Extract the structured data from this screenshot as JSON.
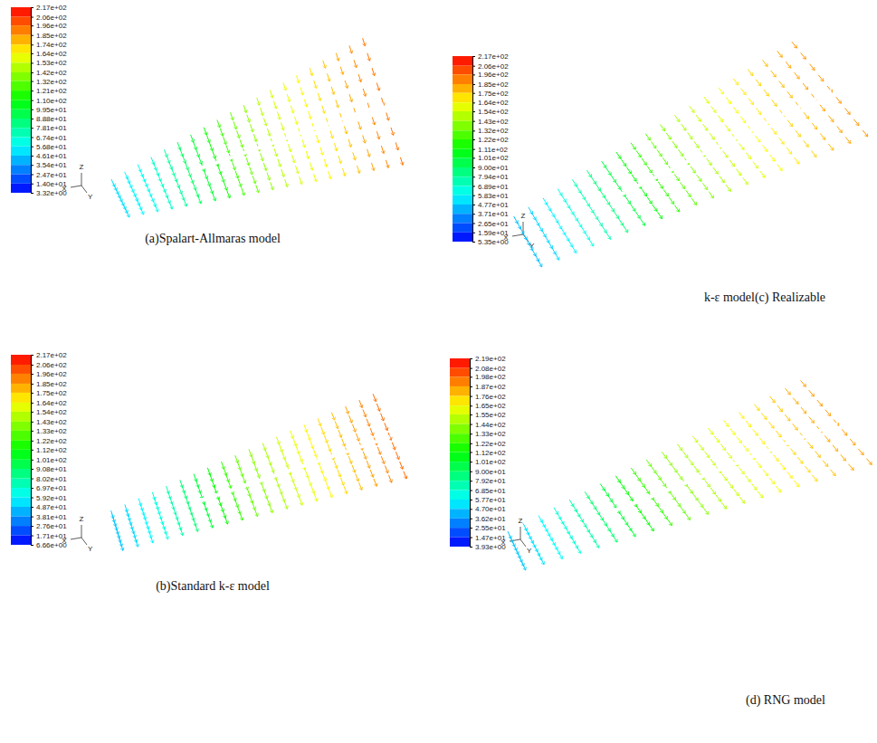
{
  "chart_data": [
    {
      "type": "vector_field",
      "title": "(a)Spalart-Allmaras model",
      "colorbar_range": [
        3.32,
        217
      ],
      "colorbar_ticks": [
        {
          "value": 217,
          "label": "2.17e+02"
        },
        {
          "value": 206,
          "label": "2.06e+02"
        },
        {
          "value": 196,
          "label": "1.96e+02"
        },
        {
          "value": 185,
          "label": "1.85e+02"
        },
        {
          "value": 174,
          "label": "1.74e+02"
        },
        {
          "value": 164,
          "label": "1.64e+02"
        },
        {
          "value": 153,
          "label": "1.53e+02"
        },
        {
          "value": 142,
          "label": "1.42e+02"
        },
        {
          "value": 132,
          "label": "1.32e+02"
        },
        {
          "value": 121,
          "label": "1.21e+02"
        },
        {
          "value": 110,
          "label": "1.10e+02"
        },
        {
          "value": 99.5,
          "label": "9.95e+01"
        },
        {
          "value": 88.8,
          "label": "8.88e+01"
        },
        {
          "value": 78.1,
          "label": "7.81e+01"
        },
        {
          "value": 67.4,
          "label": "6.74e+01"
        },
        {
          "value": 56.8,
          "label": "5.68e+01"
        },
        {
          "value": 46.1,
          "label": "4.61e+01"
        },
        {
          "value": 35.4,
          "label": "3.54e+01"
        },
        {
          "value": 24.7,
          "label": "2.47e+01"
        },
        {
          "value": 14.0,
          "label": "1.40e+01"
        },
        {
          "value": 3.32,
          "label": "3.32e+00"
        }
      ],
      "values": [
        50,
        55,
        60,
        68,
        78,
        90,
        100,
        112,
        122,
        132,
        140,
        148,
        155,
        160,
        165,
        170,
        176,
        182,
        188,
        192
      ],
      "triad": [
        "X",
        "Y",
        "Z"
      ]
    },
    {
      "type": "vector_field",
      "title": "(b)Standard k-ε model",
      "colorbar_range": [
        6.66,
        217
      ],
      "colorbar_ticks": [
        {
          "value": 217,
          "label": "2.17e+02"
        },
        {
          "value": 206,
          "label": "2.06e+02"
        },
        {
          "value": 196,
          "label": "1.96e+02"
        },
        {
          "value": 185,
          "label": "1.85e+02"
        },
        {
          "value": 175,
          "label": "1.75e+02"
        },
        {
          "value": 164,
          "label": "1.64e+02"
        },
        {
          "value": 154,
          "label": "1.54e+02"
        },
        {
          "value": 143,
          "label": "1.43e+02"
        },
        {
          "value": 133,
          "label": "1.33e+02"
        },
        {
          "value": 122,
          "label": "1.22e+02"
        },
        {
          "value": 112,
          "label": "1.12e+02"
        },
        {
          "value": 101,
          "label": "1.01e+02"
        },
        {
          "value": 90.8,
          "label": "9.08e+01"
        },
        {
          "value": 80.2,
          "label": "8.02e+01"
        },
        {
          "value": 69.7,
          "label": "6.97e+01"
        },
        {
          "value": 59.2,
          "label": "5.92e+01"
        },
        {
          "value": 48.7,
          "label": "4.87e+01"
        },
        {
          "value": 38.1,
          "label": "3.81e+01"
        },
        {
          "value": 27.6,
          "label": "2.76e+01"
        },
        {
          "value": 17.1,
          "label": "1.71e+01"
        },
        {
          "value": 6.66,
          "label": "6.66e+00"
        }
      ],
      "values": [
        48,
        52,
        58,
        66,
        76,
        88,
        100,
        112,
        122,
        132,
        140,
        147,
        154,
        160,
        166,
        172,
        178,
        184,
        190,
        195
      ],
      "triad": [
        "X",
        "Y",
        "Z"
      ]
    },
    {
      "type": "vector_field",
      "title": "k-ε model(c) Realizable",
      "colorbar_range": [
        5.35,
        217
      ],
      "colorbar_ticks": [
        {
          "value": 217,
          "label": "2.17e+02"
        },
        {
          "value": 206,
          "label": "2.06e+02"
        },
        {
          "value": 196,
          "label": "1.96e+02"
        },
        {
          "value": 185,
          "label": "1.85e+02"
        },
        {
          "value": 175,
          "label": "1.75e+02"
        },
        {
          "value": 164,
          "label": "1.64e+02"
        },
        {
          "value": 154,
          "label": "1.54e+02"
        },
        {
          "value": 143,
          "label": "1.43e+02"
        },
        {
          "value": 132,
          "label": "1.32e+02"
        },
        {
          "value": 122,
          "label": "1.22e+02"
        },
        {
          "value": 111,
          "label": "1.11e+02"
        },
        {
          "value": 101,
          "label": "1.01e+02"
        },
        {
          "value": 90,
          "label": "9.00e+01"
        },
        {
          "value": 79.4,
          "label": "7.94e+01"
        },
        {
          "value": 68.9,
          "label": "6.89e+01"
        },
        {
          "value": 58.3,
          "label": "5.83e+01"
        },
        {
          "value": 47.7,
          "label": "4.77e+01"
        },
        {
          "value": 37.1,
          "label": "3.71e+01"
        },
        {
          "value": 26.5,
          "label": "2.65e+01"
        },
        {
          "value": 15.9,
          "label": "1.59e+01"
        },
        {
          "value": 5.35,
          "label": "5.35e+00"
        }
      ],
      "values": [
        45,
        50,
        56,
        64,
        74,
        86,
        98,
        110,
        120,
        130,
        138,
        146,
        152,
        158,
        163,
        168,
        173,
        178,
        183,
        186
      ],
      "triad": [
        "X",
        "Y",
        "Z"
      ]
    },
    {
      "type": "vector_field",
      "title": "(d) RNG model",
      "colorbar_range": [
        3.93,
        219
      ],
      "colorbar_ticks": [
        {
          "value": 219,
          "label": "2.19e+02"
        },
        {
          "value": 208,
          "label": "2.08e+02"
        },
        {
          "value": 198,
          "label": "1.98e+02"
        },
        {
          "value": 187,
          "label": "1.87e+02"
        },
        {
          "value": 176,
          "label": "1.76e+02"
        },
        {
          "value": 165,
          "label": "1.65e+02"
        },
        {
          "value": 155,
          "label": "1.55e+02"
        },
        {
          "value": 144,
          "label": "1.44e+02"
        },
        {
          "value": 133,
          "label": "1.33e+02"
        },
        {
          "value": 122,
          "label": "1.22e+02"
        },
        {
          "value": 112,
          "label": "1.12e+02"
        },
        {
          "value": 101,
          "label": "1.01e+02"
        },
        {
          "value": 90,
          "label": "9.00e+01"
        },
        {
          "value": 79.2,
          "label": "7.92e+01"
        },
        {
          "value": 68.5,
          "label": "6.85e+01"
        },
        {
          "value": 57.7,
          "label": "5.77e+01"
        },
        {
          "value": 47,
          "label": "4.70e+01"
        },
        {
          "value": 36.2,
          "label": "3.62e+01"
        },
        {
          "value": 25.5,
          "label": "2.55e+01"
        },
        {
          "value": 14.7,
          "label": "1.47e+01"
        },
        {
          "value": 3.93,
          "label": "3.93e+00"
        }
      ],
      "values": [
        46,
        52,
        58,
        66,
        76,
        88,
        100,
        112,
        122,
        132,
        140,
        147,
        153,
        158,
        163,
        168,
        173,
        178,
        183,
        186
      ],
      "triad": [
        "X",
        "Y",
        "Z"
      ]
    }
  ]
}
